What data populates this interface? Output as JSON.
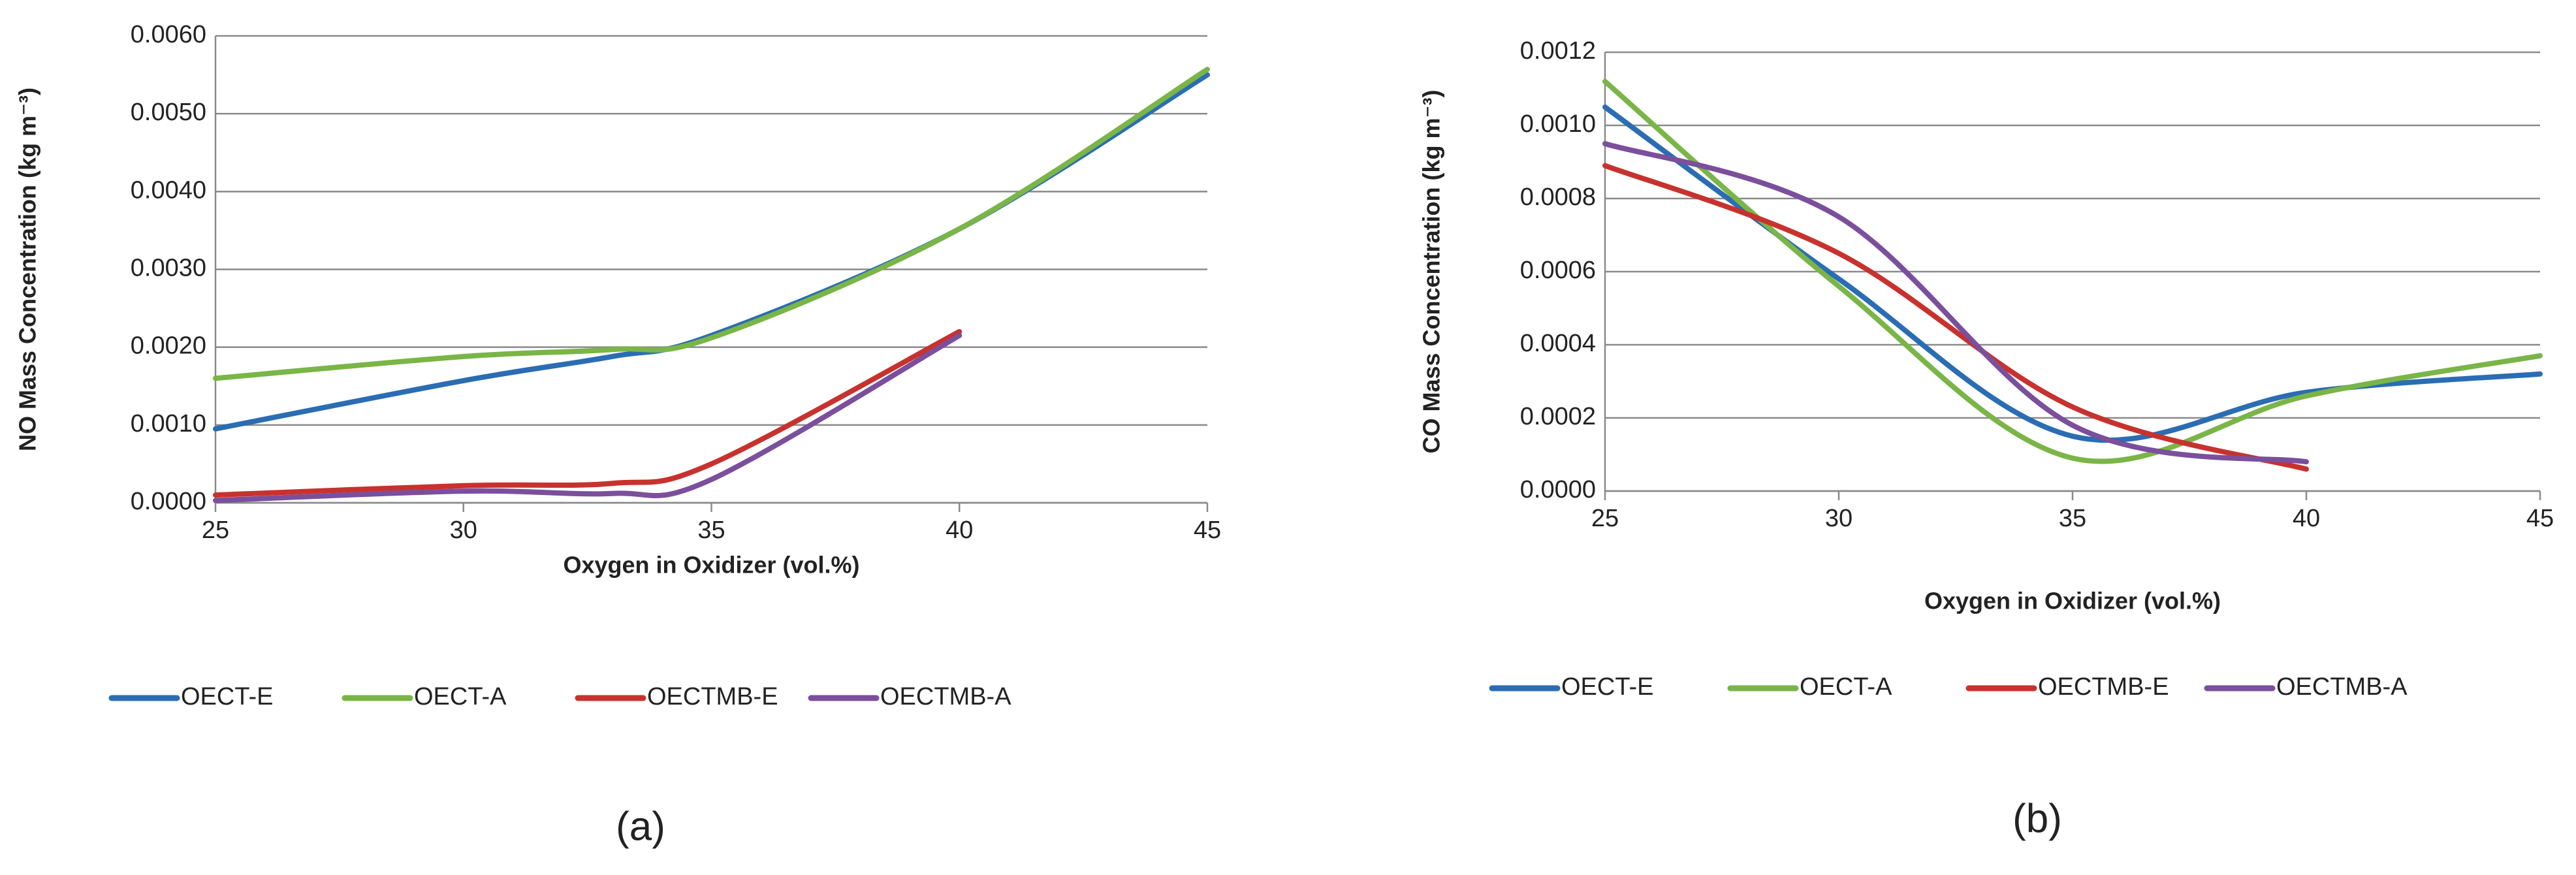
{
  "chart_data": [
    {
      "type": "line",
      "x_label": "Oxygen in Oxidizer (vol.%)",
      "y_label": "NO Mass  Concentration (kg m⁻³)",
      "caption": "(a)",
      "x": [
        25,
        30,
        33,
        35,
        40,
        45
      ],
      "series": [
        {
          "name": "OECT-E",
          "color": "#2a6db3",
          "values": [
            0.00095,
            0.00157,
            0.00188,
            0.00215,
            0.00352,
            0.0055
          ]
        },
        {
          "name": "OECT-A",
          "color": "#7ab547",
          "values": [
            0.0016,
            0.00188,
            0.00197,
            0.00212,
            0.00352,
            0.00557
          ]
        },
        {
          "name": "OECTMB-E",
          "color": "#c8322e",
          "values": [
            0.0001,
            0.00022,
            0.00025,
            0.0005,
            0.0022,
            null
          ]
        },
        {
          "name": "OECTMB-A",
          "color": "#7b4f9c",
          "values": [
            3e-05,
            0.00015,
            0.00012,
            0.0003,
            0.00215,
            null
          ]
        }
      ],
      "xlim": [
        25,
        45
      ],
      "xticks": [
        25,
        30,
        35,
        40,
        45
      ],
      "ylim": [
        0,
        0.006
      ],
      "yticks": [
        {
          "value": 0,
          "label": "0.0000"
        },
        {
          "value": 0.001,
          "label": "0.0010"
        },
        {
          "value": 0.002,
          "label": "0.0020"
        },
        {
          "value": 0.003,
          "label": "0.0030"
        },
        {
          "value": 0.004,
          "label": "0.0040"
        },
        {
          "value": 0.005,
          "label": "0.0050"
        },
        {
          "value": 0.006,
          "label": "0.0060"
        }
      ],
      "grid": true,
      "legend": "bottom"
    },
    {
      "type": "line",
      "x_label": "Oxygen in Oxidizer (vol.%)",
      "y_label": "CO Mass  Concentration (kg m⁻³)",
      "caption": "(b)",
      "x": [
        25,
        30,
        35,
        40,
        45
      ],
      "series": [
        {
          "name": "OECT-E",
          "color": "#2a6db3",
          "values": [
            0.00105,
            0.00058,
            0.00015,
            0.00027,
            0.00032
          ]
        },
        {
          "name": "OECT-A",
          "color": "#7ab547",
          "values": [
            0.00112,
            0.00056,
            9e-05,
            0.00026,
            0.00037
          ]
        },
        {
          "name": "OECTMB-E",
          "color": "#c8322e",
          "values": [
            0.00089,
            0.00065,
            0.00023,
            6e-05,
            null
          ]
        },
        {
          "name": "OECTMB-A",
          "color": "#7b4f9c",
          "values": [
            0.00095,
            0.00075,
            0.00018,
            8e-05,
            null
          ]
        }
      ],
      "xlim": [
        25,
        45
      ],
      "xticks": [
        25,
        30,
        35,
        40,
        45
      ],
      "ylim": [
        0,
        0.0012
      ],
      "yticks": [
        {
          "value": 0,
          "label": "0.0000"
        },
        {
          "value": 0.0002,
          "label": "0.0002"
        },
        {
          "value": 0.0004,
          "label": "0.0004"
        },
        {
          "value": 0.0006,
          "label": "0.0006"
        },
        {
          "value": 0.0008,
          "label": "0.0008"
        },
        {
          "value": 0.001,
          "label": "0.0010"
        },
        {
          "value": 0.0012,
          "label": "0.0012"
        }
      ],
      "grid": true,
      "legend": "bottom"
    }
  ]
}
